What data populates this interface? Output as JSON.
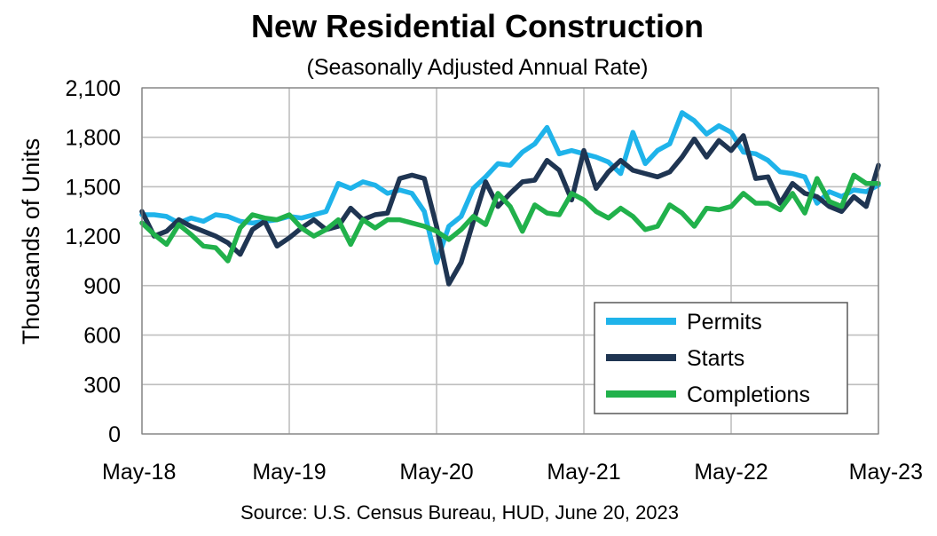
{
  "chart_data": {
    "type": "line",
    "title": "New Residential Construction",
    "subtitle": "(Seasonally Adjusted Annual Rate)",
    "ylabel": "Thousands of Units",
    "xlabel": "",
    "source": "Source:  U.S. Census Bureau, HUD, June 20, 2023",
    "ylim": [
      0,
      2100
    ],
    "yticks": [
      0,
      300,
      600,
      900,
      1200,
      1500,
      1800,
      2100
    ],
    "ytick_labels": [
      "0",
      "300",
      "600",
      "900",
      "1,200",
      "1,500",
      "1,800",
      "2,100"
    ],
    "xtick_labels": [
      "May-18",
      "May-19",
      "May-20",
      "May-21",
      "May-22",
      "May-23"
    ],
    "xtick_index": [
      0,
      12,
      24,
      36,
      48,
      60
    ],
    "x_count": 61,
    "grid": true,
    "legend_position": "bottom-right",
    "series": [
      {
        "name": "Permits",
        "color": "#1fb3ea",
        "values": [
          1330,
          1330,
          1320,
          1280,
          1310,
          1290,
          1330,
          1320,
          1290,
          1280,
          1290,
          1300,
          1320,
          1310,
          1330,
          1350,
          1520,
          1490,
          1530,
          1510,
          1460,
          1480,
          1460,
          1350,
          1040,
          1260,
          1320,
          1490,
          1560,
          1640,
          1630,
          1710,
          1760,
          1860,
          1700,
          1720,
          1700,
          1680,
          1650,
          1580,
          1830,
          1640,
          1720,
          1760,
          1950,
          1900,
          1820,
          1870,
          1830,
          1710,
          1700,
          1660,
          1590,
          1580,
          1560,
          1400,
          1470,
          1440,
          1480,
          1470,
          1510
        ]
      },
      {
        "name": "Starts",
        "color": "#1f3552",
        "values": [
          1350,
          1200,
          1230,
          1300,
          1260,
          1230,
          1200,
          1160,
          1090,
          1240,
          1290,
          1140,
          1190,
          1250,
          1300,
          1240,
          1260,
          1370,
          1300,
          1330,
          1340,
          1550,
          1570,
          1550,
          1260,
          910,
          1040,
          1290,
          1530,
          1380,
          1460,
          1530,
          1540,
          1660,
          1600,
          1420,
          1720,
          1490,
          1590,
          1660,
          1600,
          1580,
          1560,
          1590,
          1680,
          1790,
          1680,
          1780,
          1720,
          1810,
          1550,
          1560,
          1400,
          1520,
          1460,
          1440,
          1380,
          1350,
          1440,
          1380,
          1630
        ]
      },
      {
        "name": "Completions",
        "color": "#21b14b",
        "values": [
          1280,
          1210,
          1150,
          1270,
          1210,
          1140,
          1130,
          1050,
          1250,
          1330,
          1310,
          1300,
          1330,
          1250,
          1200,
          1240,
          1300,
          1150,
          1300,
          1250,
          1300,
          1300,
          1280,
          1260,
          1230,
          1180,
          1240,
          1320,
          1270,
          1460,
          1380,
          1230,
          1390,
          1340,
          1330,
          1460,
          1420,
          1350,
          1310,
          1370,
          1320,
          1240,
          1260,
          1390,
          1340,
          1260,
          1370,
          1360,
          1380,
          1460,
          1400,
          1400,
          1360,
          1460,
          1340,
          1550,
          1410,
          1380,
          1570,
          1520,
          1520
        ]
      }
    ]
  }
}
